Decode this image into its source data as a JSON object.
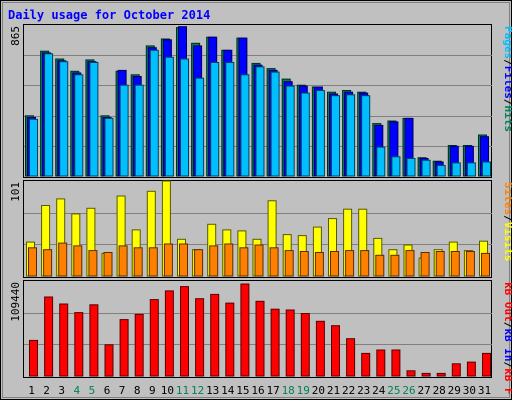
{
  "chart_data": [
    {
      "type": "bar",
      "title": "Daily usage for October 2014",
      "max_label": "865",
      "legend_separator": "/",
      "categories": [
        "1",
        "2",
        "3",
        "4",
        "5",
        "6",
        "7",
        "8",
        "9",
        "10",
        "11",
        "12",
        "13",
        "14",
        "15",
        "16",
        "17",
        "18",
        "19",
        "20",
        "21",
        "22",
        "23",
        "24",
        "25",
        "26",
        "27",
        "28",
        "29",
        "30",
        "31"
      ],
      "weekend_days": [
        "4",
        "5",
        "11",
        "12",
        "18",
        "19",
        "25",
        "26"
      ],
      "ylim": [
        0,
        865
      ],
      "grid": true,
      "series": [
        {
          "name": "Hits",
          "color": "#00805c",
          "values": [
            345,
            715,
            670,
            600,
            665,
            345,
            600,
            580,
            745,
            785,
            850,
            760,
            795,
            720,
            790,
            645,
            615,
            555,
            520,
            510,
            480,
            490,
            480,
            300,
            315,
            330,
            105,
            85,
            175,
            175,
            235
          ]
        },
        {
          "name": "Files",
          "color": "#0000ff",
          "values": [
            335,
            705,
            660,
            590,
            655,
            335,
            605,
            570,
            735,
            780,
            855,
            745,
            795,
            720,
            790,
            635,
            605,
            540,
            515,
            510,
            470,
            480,
            475,
            290,
            310,
            330,
            100,
            80,
            170,
            170,
            225
          ]
        },
        {
          "name": "Pages",
          "color": "#00bfff",
          "values": [
            325,
            700,
            655,
            580,
            650,
            330,
            520,
            520,
            720,
            680,
            670,
            560,
            650,
            650,
            580,
            625,
            595,
            515,
            475,
            490,
            460,
            465,
            460,
            165,
            110,
            100,
            90,
            60,
            75,
            75,
            80
          ]
        }
      ]
    },
    {
      "type": "bar",
      "max_label": "101",
      "legend_separator": "/",
      "ylim": [
        0,
        101
      ],
      "grid": true,
      "series": [
        {
          "name": "Visits",
          "color": "#ffff00",
          "values": [
            36,
            75,
            82,
            66,
            72,
            24,
            85,
            49,
            90,
            101,
            39,
            28,
            55,
            49,
            48,
            39,
            80,
            44,
            43,
            52,
            61,
            71,
            71,
            40,
            28,
            33,
            19,
            28,
            36,
            27,
            37
          ]
        },
        {
          "name": "Sites",
          "color": "#ff8000",
          "values": [
            30,
            28,
            35,
            32,
            27,
            25,
            32,
            30,
            30,
            34,
            34,
            28,
            32,
            34,
            30,
            33,
            30,
            27,
            26,
            25,
            26,
            27,
            27,
            22,
            22,
            27,
            25,
            26,
            26,
            26,
            24
          ]
        }
      ]
    },
    {
      "type": "bar",
      "max_label": "109440",
      "legend_separator": "/",
      "ylim": [
        0,
        109440
      ],
      "grid": true,
      "series": [
        {
          "name": "kB F",
          "color": "#ff0000",
          "values": [
            0,
            0,
            0,
            0,
            0,
            0,
            0,
            0,
            0,
            0,
            0,
            0,
            0,
            0,
            0,
            0,
            0,
            0,
            0,
            0,
            0,
            0,
            0,
            0,
            0,
            0,
            0,
            0,
            0,
            0,
            0
          ]
        },
        {
          "name": "kB In",
          "color": "#0000ff",
          "values": [
            0,
            0,
            0,
            0,
            0,
            0,
            0,
            0,
            0,
            0,
            0,
            0,
            0,
            0,
            0,
            0,
            0,
            0,
            0,
            0,
            0,
            0,
            0,
            0,
            0,
            0,
            0,
            0,
            0,
            0,
            0
          ]
        },
        {
          "name": "kB Out",
          "color": "#ff0000",
          "values": [
            41000,
            91000,
            83000,
            73000,
            82000,
            36000,
            65000,
            71000,
            88000,
            98000,
            103000,
            89000,
            94000,
            84000,
            106000,
            86000,
            77000,
            76000,
            72000,
            63000,
            58000,
            43000,
            26000,
            30000,
            30000,
            6000,
            3000,
            3000,
            14000,
            16000,
            26000
          ]
        }
      ]
    }
  ]
}
